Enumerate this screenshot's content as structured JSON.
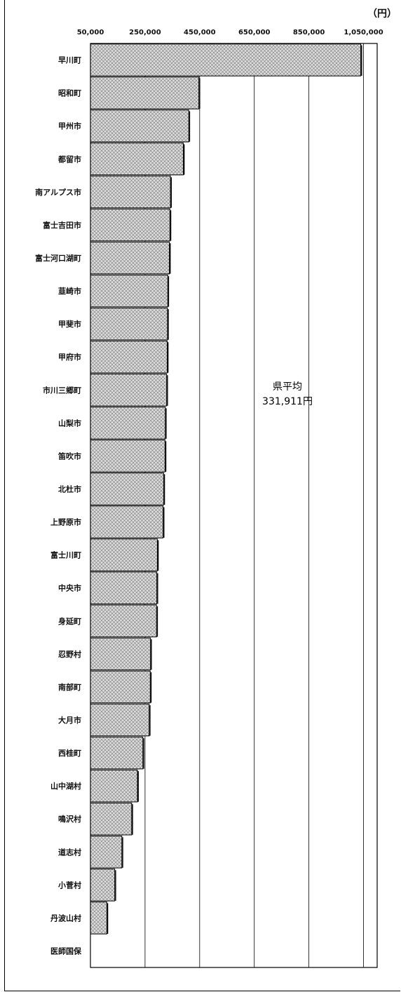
{
  "chart_data": {
    "type": "bar",
    "orientation": "horizontal",
    "unit_label": "（円）",
    "xlim": [
      50000,
      1100000
    ],
    "x_ticks": [
      50000,
      250000,
      450000,
      650000,
      850000,
      1050000
    ],
    "x_tick_labels": [
      "50,000",
      "250,000",
      "450,000",
      "650,000",
      "850,000",
      "1,050,000"
    ],
    "grid": true,
    "fill": "crosshatch",
    "bar_fill_color": "#d9d9d9",
    "bar_stroke_color": "#000000",
    "categories": [
      "早川町",
      "昭和町",
      "甲州市",
      "都留市",
      "南アルプス市",
      "富士吉田市",
      "富士河口湖町",
      "韮崎市",
      "甲斐市",
      "甲府市",
      "市川三郷町",
      "山梨市",
      "笛吹市",
      "北杜市",
      "上野原市",
      "富士川町",
      "中央市",
      "身延町",
      "忍野村",
      "南部町",
      "大月市",
      "西桂町",
      "山中湖村",
      "鳴沢村",
      "道志村",
      "小菅村",
      "丹波山村",
      "医師国保"
    ],
    "values": [
      1040000,
      447000,
      410000,
      390000,
      343000,
      341000,
      339000,
      333000,
      332000,
      331000,
      329000,
      324000,
      323000,
      318000,
      316000,
      295000,
      293000,
      292000,
      270000,
      269000,
      265000,
      242000,
      222000,
      201000,
      165000,
      139000,
      110000,
      0
    ],
    "annotation": {
      "line1": "県平均",
      "line2": "331,911円"
    }
  }
}
